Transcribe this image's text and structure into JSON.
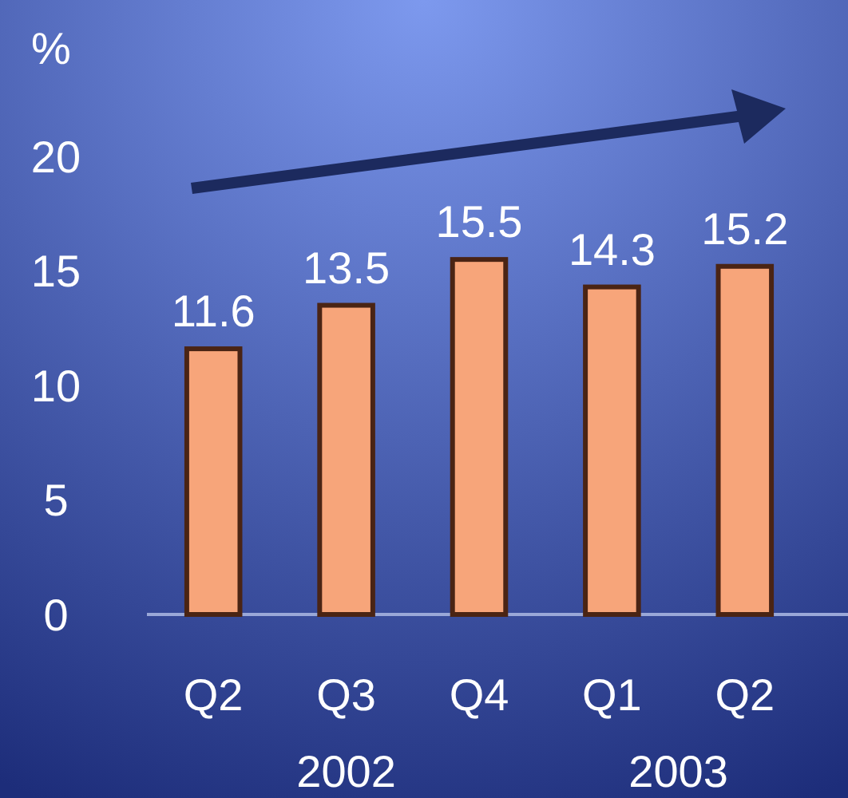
{
  "chart_data": {
    "type": "bar",
    "ylabel": "%",
    "categories": [
      "Q2",
      "Q3",
      "Q4",
      "Q1",
      "Q2"
    ],
    "values": [
      11.6,
      13.5,
      15.5,
      14.3,
      15.2
    ],
    "color": "#f7a57a",
    "data_labels": true,
    "ylim": [
      0,
      20
    ],
    "yticks": [
      0,
      5,
      10,
      15,
      20
    ],
    "grid": false,
    "annotations": [
      "2002",
      "2003"
    ]
  }
}
